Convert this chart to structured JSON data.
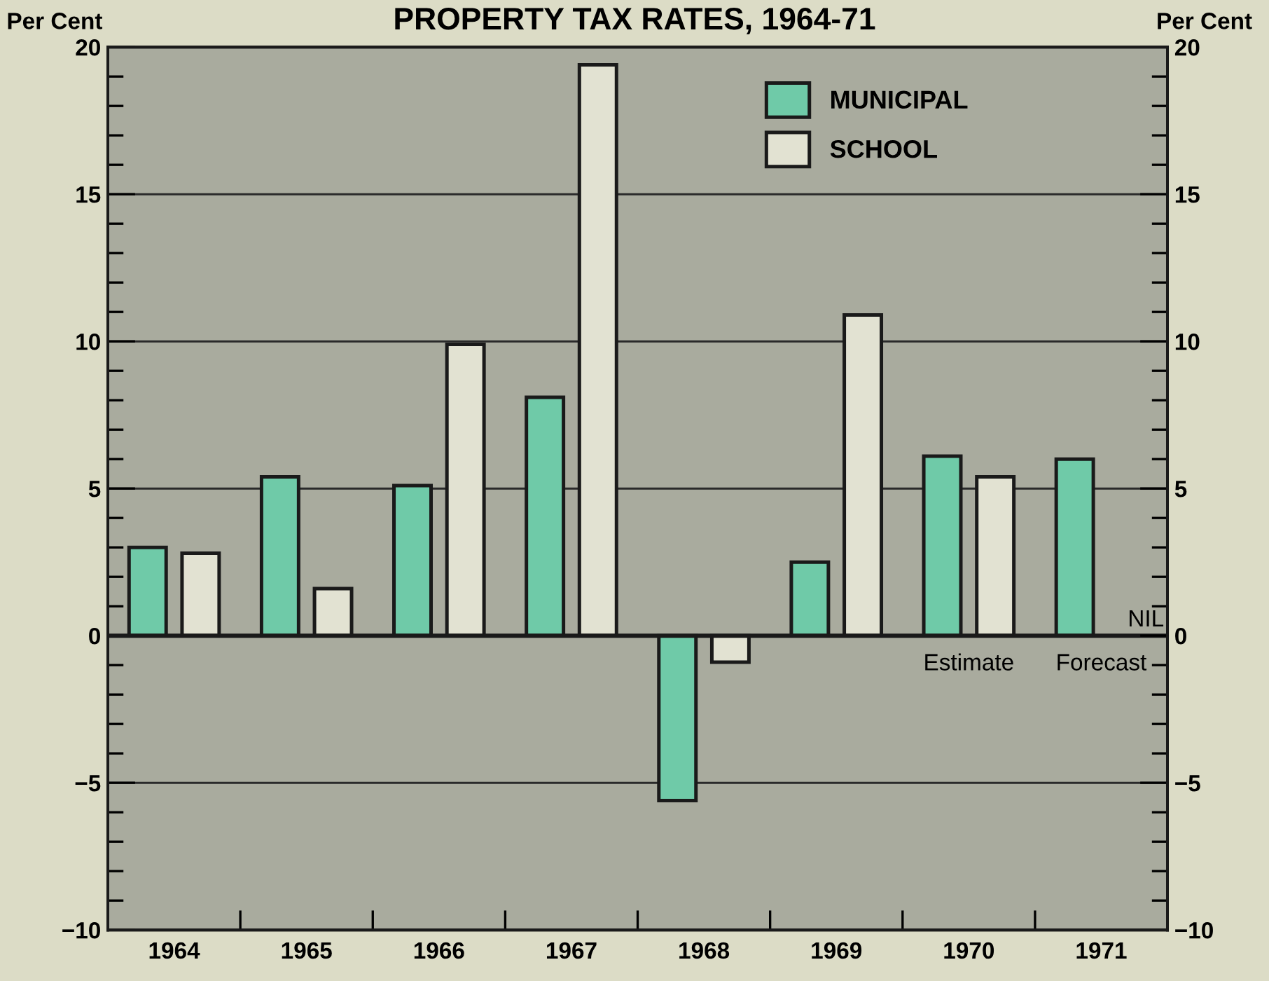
{
  "chart_data": {
    "type": "bar",
    "title": "PROPERTY TAX RATES, 1964-71",
    "ylabel": "Per Cent",
    "y2label": "Per Cent",
    "categories": [
      "1964",
      "1965",
      "1966",
      "1967",
      "1968",
      "1969",
      "1970",
      "1971"
    ],
    "series": [
      {
        "name": "MUNICIPAL",
        "color": "#6fcaa8",
        "values": [
          3.0,
          5.4,
          5.1,
          8.1,
          -5.6,
          2.5,
          6.1,
          6.0
        ]
      },
      {
        "name": "SCHOOL",
        "color": "#e2e2d2",
        "values": [
          2.8,
          1.6,
          9.9,
          19.4,
          -0.9,
          10.9,
          5.4,
          null
        ]
      }
    ],
    "ylim": [
      -10,
      20
    ],
    "yticks": [
      {
        "value": -10,
        "label": "−10"
      },
      {
        "value": -5,
        "label": "−5"
      },
      0,
      5,
      10,
      15,
      20
    ],
    "y2lim": [
      -10,
      20
    ],
    "y2ticks": [
      {
        "value": -10,
        "label": "−10"
      },
      {
        "value": -5,
        "label": "−5"
      },
      0,
      5,
      10,
      15,
      20
    ],
    "annotations": [
      "NIL",
      "Estimate",
      "Forecast"
    ],
    "grid": "y",
    "legend": "top"
  }
}
